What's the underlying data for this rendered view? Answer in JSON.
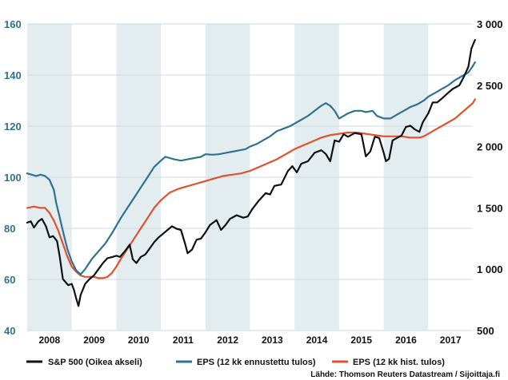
{
  "chart_data": {
    "type": "line",
    "title": "",
    "left_axis": {
      "ylim": [
        40,
        160
      ],
      "ticks": [
        40,
        60,
        80,
        100,
        120,
        140,
        160
      ]
    },
    "right_axis": {
      "ylim": [
        500,
        3000
      ],
      "ticks": [
        500,
        1000,
        1500,
        2000,
        2500,
        3000
      ],
      "tick_labels": [
        "500",
        "1 000",
        "1 500",
        "2 000",
        "2 500",
        "3 000"
      ]
    },
    "x_axis": {
      "xlim": [
        2008.0,
        2018.0
      ],
      "year_labels": [
        "2008",
        "2009",
        "2010",
        "2011",
        "2012",
        "2013",
        "2014",
        "2015",
        "2016",
        "2017"
      ]
    },
    "shaded_bands": [
      [
        2008.0,
        2009.0
      ],
      [
        2010.0,
        2011.0
      ],
      [
        2012.0,
        2013.0
      ],
      [
        2014.0,
        2015.0
      ],
      [
        2016.0,
        2017.0
      ]
    ],
    "grid": true,
    "legend_position": "bottom",
    "source": "Lähde: Thomson Reuters Datastream / Sijoittaja.fi",
    "series": [
      {
        "name": "S&P 500 (Oikea akseli)",
        "axis": "right",
        "color": "#111111",
        "points": [
          [
            2008.0,
            1380
          ],
          [
            2008.08,
            1390
          ],
          [
            2008.15,
            1340
          ],
          [
            2008.25,
            1390
          ],
          [
            2008.33,
            1410
          ],
          [
            2008.42,
            1350
          ],
          [
            2008.5,
            1260
          ],
          [
            2008.58,
            1270
          ],
          [
            2008.67,
            1230
          ],
          [
            2008.73,
            1100
          ],
          [
            2008.8,
            920
          ],
          [
            2008.85,
            900
          ],
          [
            2008.92,
            870
          ],
          [
            2009.0,
            880
          ],
          [
            2009.05,
            830
          ],
          [
            2009.1,
            760
          ],
          [
            2009.15,
            700
          ],
          [
            2009.2,
            790
          ],
          [
            2009.3,
            880
          ],
          [
            2009.4,
            920
          ],
          [
            2009.5,
            950
          ],
          [
            2009.6,
            1000
          ],
          [
            2009.7,
            1050
          ],
          [
            2009.8,
            1090
          ],
          [
            2009.92,
            1100
          ],
          [
            2010.0,
            1110
          ],
          [
            2010.08,
            1100
          ],
          [
            2010.2,
            1150
          ],
          [
            2010.3,
            1200
          ],
          [
            2010.37,
            1080
          ],
          [
            2010.45,
            1050
          ],
          [
            2010.55,
            1100
          ],
          [
            2010.65,
            1120
          ],
          [
            2010.75,
            1170
          ],
          [
            2010.85,
            1220
          ],
          [
            2010.95,
            1260
          ],
          [
            2011.05,
            1290
          ],
          [
            2011.15,
            1320
          ],
          [
            2011.25,
            1350
          ],
          [
            2011.35,
            1330
          ],
          [
            2011.45,
            1320
          ],
          [
            2011.55,
            1200
          ],
          [
            2011.6,
            1130
          ],
          [
            2011.7,
            1160
          ],
          [
            2011.8,
            1240
          ],
          [
            2011.9,
            1250
          ],
          [
            2012.0,
            1300
          ],
          [
            2012.1,
            1360
          ],
          [
            2012.25,
            1400
          ],
          [
            2012.35,
            1320
          ],
          [
            2012.45,
            1360
          ],
          [
            2012.55,
            1410
          ],
          [
            2012.7,
            1440
          ],
          [
            2012.85,
            1420
          ],
          [
            2012.95,
            1430
          ],
          [
            2013.05,
            1490
          ],
          [
            2013.2,
            1560
          ],
          [
            2013.35,
            1620
          ],
          [
            2013.45,
            1610
          ],
          [
            2013.55,
            1680
          ],
          [
            2013.7,
            1690
          ],
          [
            2013.85,
            1800
          ],
          [
            2013.95,
            1840
          ],
          [
            2014.05,
            1790
          ],
          [
            2014.15,
            1860
          ],
          [
            2014.3,
            1880
          ],
          [
            2014.45,
            1950
          ],
          [
            2014.6,
            1970
          ],
          [
            2014.7,
            1940
          ],
          [
            2014.8,
            1880
          ],
          [
            2014.9,
            2050
          ],
          [
            2015.0,
            2040
          ],
          [
            2015.1,
            2100
          ],
          [
            2015.2,
            2080
          ],
          [
            2015.35,
            2110
          ],
          [
            2015.5,
            2100
          ],
          [
            2015.6,
            1920
          ],
          [
            2015.7,
            1960
          ],
          [
            2015.8,
            2080
          ],
          [
            2015.9,
            2070
          ],
          [
            2016.0,
            1950
          ],
          [
            2016.05,
            1880
          ],
          [
            2016.12,
            1900
          ],
          [
            2016.2,
            2050
          ],
          [
            2016.3,
            2070
          ],
          [
            2016.4,
            2090
          ],
          [
            2016.5,
            2160
          ],
          [
            2016.6,
            2170
          ],
          [
            2016.7,
            2140
          ],
          [
            2016.8,
            2120
          ],
          [
            2016.88,
            2200
          ],
          [
            2017.0,
            2270
          ],
          [
            2017.1,
            2360
          ],
          [
            2017.2,
            2360
          ],
          [
            2017.3,
            2390
          ],
          [
            2017.45,
            2440
          ],
          [
            2017.55,
            2470
          ],
          [
            2017.7,
            2500
          ],
          [
            2017.8,
            2570
          ],
          [
            2017.9,
            2650
          ],
          [
            2017.97,
            2800
          ],
          [
            2018.05,
            2870
          ]
        ]
      },
      {
        "name": "EPS (12 kk ennustettu tulos)",
        "axis": "left",
        "color": "#2e7191",
        "points": [
          [
            2008.0,
            101.5
          ],
          [
            2008.1,
            101
          ],
          [
            2008.2,
            100.5
          ],
          [
            2008.3,
            101
          ],
          [
            2008.4,
            100.5
          ],
          [
            2008.5,
            99
          ],
          [
            2008.55,
            97
          ],
          [
            2008.6,
            95
          ],
          [
            2008.65,
            90
          ],
          [
            2008.72,
            85
          ],
          [
            2008.8,
            79
          ],
          [
            2008.9,
            72
          ],
          [
            2009.0,
            67
          ],
          [
            2009.1,
            63.5
          ],
          [
            2009.2,
            62
          ],
          [
            2009.3,
            64
          ],
          [
            2009.45,
            68
          ],
          [
            2009.6,
            71
          ],
          [
            2009.75,
            74
          ],
          [
            2009.9,
            78
          ],
          [
            2010.0,
            81
          ],
          [
            2010.1,
            84
          ],
          [
            2010.25,
            88
          ],
          [
            2010.4,
            92
          ],
          [
            2010.55,
            96
          ],
          [
            2010.7,
            100
          ],
          [
            2010.85,
            104
          ],
          [
            2011.0,
            106.5
          ],
          [
            2011.1,
            108
          ],
          [
            2011.2,
            107.5
          ],
          [
            2011.3,
            107
          ],
          [
            2011.45,
            106.5
          ],
          [
            2011.6,
            107
          ],
          [
            2011.75,
            107.5
          ],
          [
            2011.9,
            108
          ],
          [
            2012.0,
            109
          ],
          [
            2012.15,
            108.8
          ],
          [
            2012.3,
            109
          ],
          [
            2012.45,
            109.5
          ],
          [
            2012.6,
            110
          ],
          [
            2012.75,
            110.5
          ],
          [
            2012.9,
            111
          ],
          [
            2013.0,
            112
          ],
          [
            2013.15,
            113
          ],
          [
            2013.3,
            114.5
          ],
          [
            2013.45,
            116
          ],
          [
            2013.6,
            118
          ],
          [
            2013.75,
            119
          ],
          [
            2013.9,
            120
          ],
          [
            2014.0,
            121
          ],
          [
            2014.15,
            122.5
          ],
          [
            2014.3,
            124
          ],
          [
            2014.45,
            126
          ],
          [
            2014.6,
            128
          ],
          [
            2014.7,
            129
          ],
          [
            2014.8,
            128
          ],
          [
            2014.9,
            126
          ],
          [
            2015.0,
            123
          ],
          [
            2015.1,
            124
          ],
          [
            2015.2,
            125
          ],
          [
            2015.35,
            126
          ],
          [
            2015.5,
            126
          ],
          [
            2015.6,
            125.5
          ],
          [
            2015.75,
            126
          ],
          [
            2015.85,
            124
          ],
          [
            2016.0,
            123
          ],
          [
            2016.15,
            123
          ],
          [
            2016.3,
            124.5
          ],
          [
            2016.45,
            126
          ],
          [
            2016.6,
            127.5
          ],
          [
            2016.75,
            128.5
          ],
          [
            2016.9,
            130
          ],
          [
            2017.0,
            131.5
          ],
          [
            2017.15,
            133
          ],
          [
            2017.3,
            134.5
          ],
          [
            2017.45,
            136
          ],
          [
            2017.6,
            138
          ],
          [
            2017.75,
            139.5
          ],
          [
            2017.9,
            141
          ],
          [
            2018.0,
            143.5
          ],
          [
            2018.05,
            145
          ]
        ]
      },
      {
        "name": "EPS (12 kk hist. tulos)",
        "axis": "left",
        "color": "#e0512d",
        "points": [
          [
            2008.0,
            88
          ],
          [
            2008.15,
            88.5
          ],
          [
            2008.3,
            88
          ],
          [
            2008.4,
            88
          ],
          [
            2008.5,
            86
          ],
          [
            2008.6,
            83
          ],
          [
            2008.7,
            79
          ],
          [
            2008.8,
            74
          ],
          [
            2008.9,
            69
          ],
          [
            2009.0,
            65
          ],
          [
            2009.1,
            63
          ],
          [
            2009.2,
            61.5
          ],
          [
            2009.3,
            61
          ],
          [
            2009.4,
            61
          ],
          [
            2009.5,
            61
          ],
          [
            2009.6,
            60.5
          ],
          [
            2009.7,
            60.5
          ],
          [
            2009.8,
            61
          ],
          [
            2009.9,
            62.5
          ],
          [
            2010.0,
            65
          ],
          [
            2010.1,
            68
          ],
          [
            2010.25,
            72
          ],
          [
            2010.4,
            76
          ],
          [
            2010.55,
            80
          ],
          [
            2010.7,
            84
          ],
          [
            2010.85,
            88
          ],
          [
            2011.0,
            91
          ],
          [
            2011.2,
            94
          ],
          [
            2011.4,
            95.5
          ],
          [
            2011.6,
            96.5
          ],
          [
            2011.8,
            97.5
          ],
          [
            2012.0,
            98.5
          ],
          [
            2012.2,
            99.5
          ],
          [
            2012.4,
            100.5
          ],
          [
            2012.6,
            101
          ],
          [
            2012.8,
            101.5
          ],
          [
            2013.0,
            102.5
          ],
          [
            2013.2,
            104
          ],
          [
            2013.4,
            105.5
          ],
          [
            2013.6,
            107
          ],
          [
            2013.8,
            109
          ],
          [
            2014.0,
            111
          ],
          [
            2014.2,
            112.5
          ],
          [
            2014.4,
            114
          ],
          [
            2014.6,
            115.5
          ],
          [
            2014.8,
            116.5
          ],
          [
            2015.0,
            117
          ],
          [
            2015.2,
            117.5
          ],
          [
            2015.4,
            117.5
          ],
          [
            2015.6,
            117
          ],
          [
            2015.8,
            116.5
          ],
          [
            2016.0,
            116
          ],
          [
            2016.2,
            116
          ],
          [
            2016.4,
            116
          ],
          [
            2016.6,
            115.5
          ],
          [
            2016.8,
            115.5
          ],
          [
            2016.9,
            116
          ],
          [
            2017.0,
            117
          ],
          [
            2017.2,
            119
          ],
          [
            2017.4,
            121
          ],
          [
            2017.6,
            123
          ],
          [
            2017.8,
            126
          ],
          [
            2018.0,
            129
          ],
          [
            2018.05,
            130.5
          ]
        ]
      }
    ]
  }
}
